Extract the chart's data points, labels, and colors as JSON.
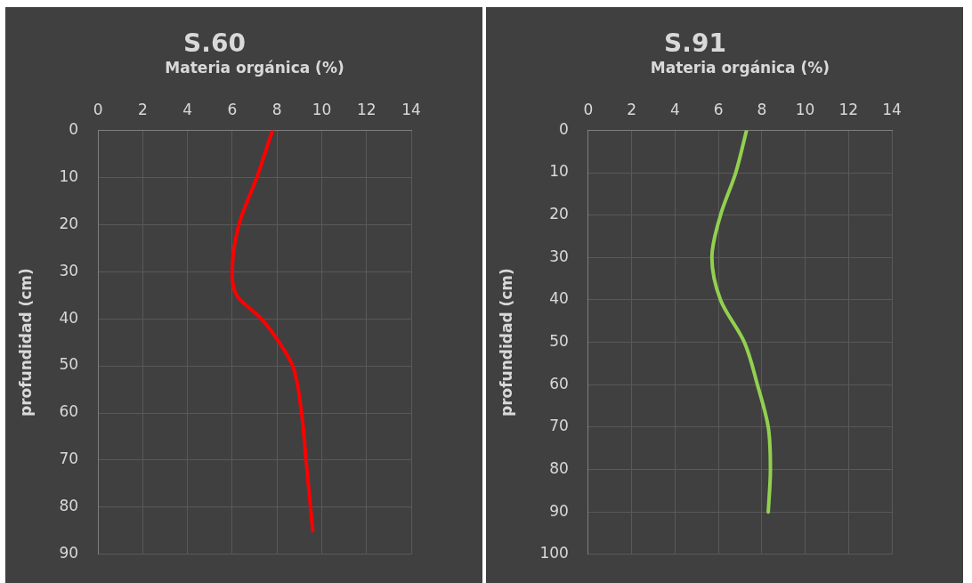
{
  "chart_data": [
    {
      "type": "line",
      "title": "S.60",
      "xlabel": "Materia orgánica (%)",
      "ylabel": "profundidad (cm)",
      "xlim": [
        0,
        14
      ],
      "xticks": [
        0,
        2,
        4,
        6,
        8,
        10,
        12,
        14
      ],
      "ylim": [
        90,
        0
      ],
      "yticks": [
        0,
        10,
        20,
        30,
        40,
        50,
        60,
        70,
        80,
        90
      ],
      "grid": true,
      "legend": false,
      "marker": "none",
      "series": [
        {
          "color": "#ff0000",
          "x": [
            7.8,
            7.1,
            6.3,
            6.0,
            6.2,
            7.3,
            8.1,
            8.7,
            9.1,
            9.3,
            9.6
          ],
          "values": [
            0,
            10,
            20,
            30,
            35,
            40,
            45,
            50,
            60,
            70,
            85
          ]
        }
      ]
    },
    {
      "type": "line",
      "title": "S.91",
      "xlabel": "Materia orgánica (%)",
      "ylabel": "profundidad (cm)",
      "xlim": [
        0,
        14
      ],
      "xticks": [
        0,
        2,
        4,
        6,
        8,
        10,
        12,
        14
      ],
      "ylim": [
        100,
        0
      ],
      "yticks": [
        0,
        10,
        20,
        30,
        40,
        50,
        60,
        70,
        80,
        90,
        100
      ],
      "grid": true,
      "legend": false,
      "marker": "none",
      "series": [
        {
          "color": "#92d050",
          "x": [
            7.3,
            6.8,
            6.1,
            5.7,
            6.1,
            7.2,
            7.8,
            8.3,
            8.4,
            8.3
          ],
          "values": [
            0,
            10,
            20,
            30,
            40,
            50,
            60,
            70,
            80,
            90
          ]
        }
      ]
    }
  ]
}
